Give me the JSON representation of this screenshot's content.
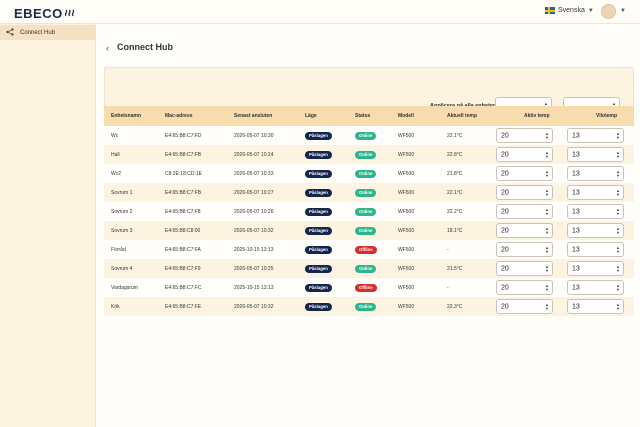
{
  "header": {
    "brand": "EBECO",
    "language": "Svenska"
  },
  "sidebar": {
    "items": [
      {
        "label": "Connect Hub"
      }
    ]
  },
  "page": {
    "title": "Connect Hub",
    "apply_label": "Applicera på alla enheter:"
  },
  "table": {
    "headers": {
      "name": "Enhetsnamn",
      "mac": "Mac-adress",
      "last_seen": "Senast ansluten",
      "mode": "Läge",
      "status": "Status",
      "model": "Modell",
      "current_temp": "Aktuell temp",
      "active_temp": "Aktiv temp",
      "eco_temp": "Vilotemp"
    },
    "rows": [
      {
        "name": "Wc",
        "mac": "E4:65:B8:C7:FD",
        "last_seen": "2026-05-07 10:30",
        "mode": "Påslagen",
        "status": "Online",
        "model": "WF500",
        "current_temp": "22.1°C",
        "active_temp": "20",
        "eco_temp": "13"
      },
      {
        "name": "Hall",
        "mac": "E4:65:B8:C7:FB",
        "last_seen": "2026-05-07 10:24",
        "mode": "Påslagen",
        "status": "Online",
        "model": "WF500",
        "current_temp": "22.8°C",
        "active_temp": "20",
        "eco_temp": "13"
      },
      {
        "name": "Wc2",
        "mac": "C8:2E:18:CD:1E",
        "last_seen": "2026-05-07 10:33",
        "mode": "Påslagen",
        "status": "Online",
        "model": "WF500",
        "current_temp": "21.8°C",
        "active_temp": "20",
        "eco_temp": "13"
      },
      {
        "name": "Sovrum 1",
        "mac": "E4:65:B8:C7:FB",
        "last_seen": "2026-05-07 10:27",
        "mode": "Påslagen",
        "status": "Online",
        "model": "WF500",
        "current_temp": "22.1°C",
        "active_temp": "20",
        "eco_temp": "13"
      },
      {
        "name": "Sovrum 2",
        "mac": "E4:65:B8:C7:F8",
        "last_seen": "2026-05-07 10:26",
        "mode": "Påslagen",
        "status": "Online",
        "model": "WF500",
        "current_temp": "22.2°C",
        "active_temp": "20",
        "eco_temp": "13"
      },
      {
        "name": "Sovrum 3",
        "mac": "E4:65:B8:C8:00",
        "last_seen": "2026-05-07 10:32",
        "mode": "Påslagen",
        "status": "Online",
        "model": "WF500",
        "current_temp": "18.1°C",
        "active_temp": "20",
        "eco_temp": "13"
      },
      {
        "name": "Förråd",
        "mac": "E4:65:B8:C7:FA",
        "last_seen": "2025-10-15 13:13",
        "mode": "Påslagen",
        "status": "Offline",
        "model": "WF500",
        "current_temp": "-",
        "active_temp": "20",
        "eco_temp": "13"
      },
      {
        "name": "Sovrum 4",
        "mac": "E4:65:B8:C7:F9",
        "last_seen": "2026-05-07 10:25",
        "mode": "Påslagen",
        "status": "Online",
        "model": "WF500",
        "current_temp": "21.5°C",
        "active_temp": "20",
        "eco_temp": "13"
      },
      {
        "name": "Vardagsrum",
        "mac": "E4:65:B8:C7:FC",
        "last_seen": "2025-10-15 13:13",
        "mode": "Påslagen",
        "status": "Offline",
        "model": "WF500",
        "current_temp": "-",
        "active_temp": "20",
        "eco_temp": "13"
      },
      {
        "name": "Kök",
        "mac": "E4:65:B8:C7:FE",
        "last_seen": "2026-05-07 10:32",
        "mode": "Påslagen",
        "status": "Online",
        "model": "WF500",
        "current_temp": "22.3°C",
        "active_temp": "20",
        "eco_temp": "13"
      }
    ]
  },
  "colors": {
    "online": "#2fb58e",
    "offline": "#d62f2f",
    "mode": "#15264d",
    "header_row": "#f8dcae"
  },
  "icons": {
    "back": "chevron-left-icon",
    "share": "share-icon",
    "wave": "wave-icon"
  }
}
